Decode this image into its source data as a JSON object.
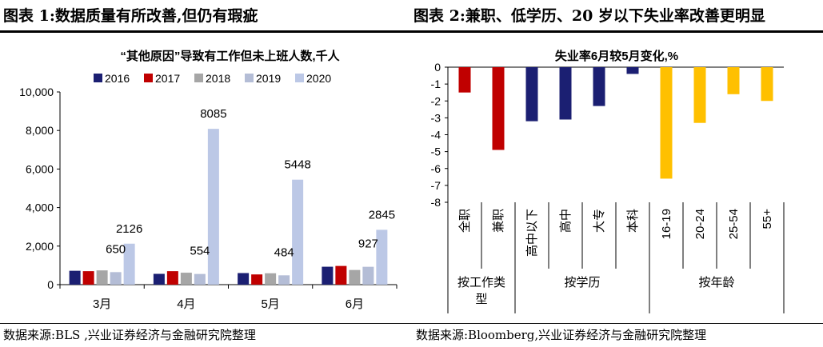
{
  "panels": {
    "left_title": "图表 1:数据质量有所改善,但仍有瑕疵",
    "right_title": "图表 2:兼职、低学历、20 岁以下失业率改善更明显",
    "left_source": "数据来源:BLS ,兴业证券经济与金融研究院整理",
    "right_source": "数据来源:Bloomberg,兴业证券经济与金融研究院整理"
  },
  "chart_data": [
    {
      "type": "bar",
      "title": "“其他原因”导致有工作但未上班人数,千人",
      "categories": [
        "3月",
        "4月",
        "5月",
        "6月"
      ],
      "series": [
        {
          "name": "2016",
          "color": "#1b1f72",
          "values": [
            720,
            560,
            600,
            930
          ]
        },
        {
          "name": "2017",
          "color": "#c00000",
          "values": [
            700,
            700,
            530,
            970
          ]
        },
        {
          "name": "2018",
          "color": "#a6a6a6",
          "values": [
            740,
            620,
            590,
            760
          ]
        },
        {
          "name": "2019",
          "color": "#b4bdd6",
          "values": [
            650,
            554,
            484,
            927
          ]
        },
        {
          "name": "2020",
          "color": "#bcc8e6",
          "values": [
            2126,
            8085,
            5448,
            2845
          ]
        }
      ],
      "labels": [
        {
          "series": "2019",
          "index": 0,
          "text": "650"
        },
        {
          "series": "2019",
          "index": 1,
          "text": "554"
        },
        {
          "series": "2019",
          "index": 2,
          "text": "484"
        },
        {
          "series": "2019",
          "index": 3,
          "text": "927"
        },
        {
          "series": "2020",
          "index": 0,
          "text": "2126"
        },
        {
          "series": "2020",
          "index": 1,
          "text": "8085"
        },
        {
          "series": "2020",
          "index": 2,
          "text": "5448"
        },
        {
          "series": "2020",
          "index": 3,
          "text": "2845"
        }
      ],
      "ylim": [
        0,
        10000
      ],
      "yticks": [
        0,
        2000,
        4000,
        6000,
        8000,
        10000
      ],
      "ytick_labels": [
        "0",
        "2,000",
        "4,000",
        "6,000",
        "8,000",
        "10,000"
      ],
      "legend_position": "top",
      "grid": false
    },
    {
      "type": "bar",
      "title": "失业率6月较5月变化,%",
      "categories": [
        "全职",
        "兼职",
        "高中以下",
        "高中",
        "大专",
        "本科",
        "16-19",
        "20-24",
        "25-54",
        "55+"
      ],
      "values": [
        -1.5,
        -4.9,
        -3.2,
        -3.1,
        -2.3,
        -0.4,
        -6.6,
        -3.3,
        -1.6,
        -2.0
      ],
      "colors": [
        "#c00000",
        "#c00000",
        "#1b1f72",
        "#1b1f72",
        "#1b1f72",
        "#1b1f72",
        "#ffc000",
        "#ffc000",
        "#ffc000",
        "#ffc000"
      ],
      "groups": [
        {
          "label": "按工作类型",
          "start": 0,
          "end": 1
        },
        {
          "label": "按学历",
          "start": 2,
          "end": 5
        },
        {
          "label": "按年龄",
          "start": 6,
          "end": 9
        }
      ],
      "ylim": [
        -8,
        0
      ],
      "yticks": [
        0,
        -1,
        -2,
        -3,
        -4,
        -5,
        -6,
        -7,
        -8
      ],
      "legend_position": "none",
      "grid": false
    }
  ]
}
